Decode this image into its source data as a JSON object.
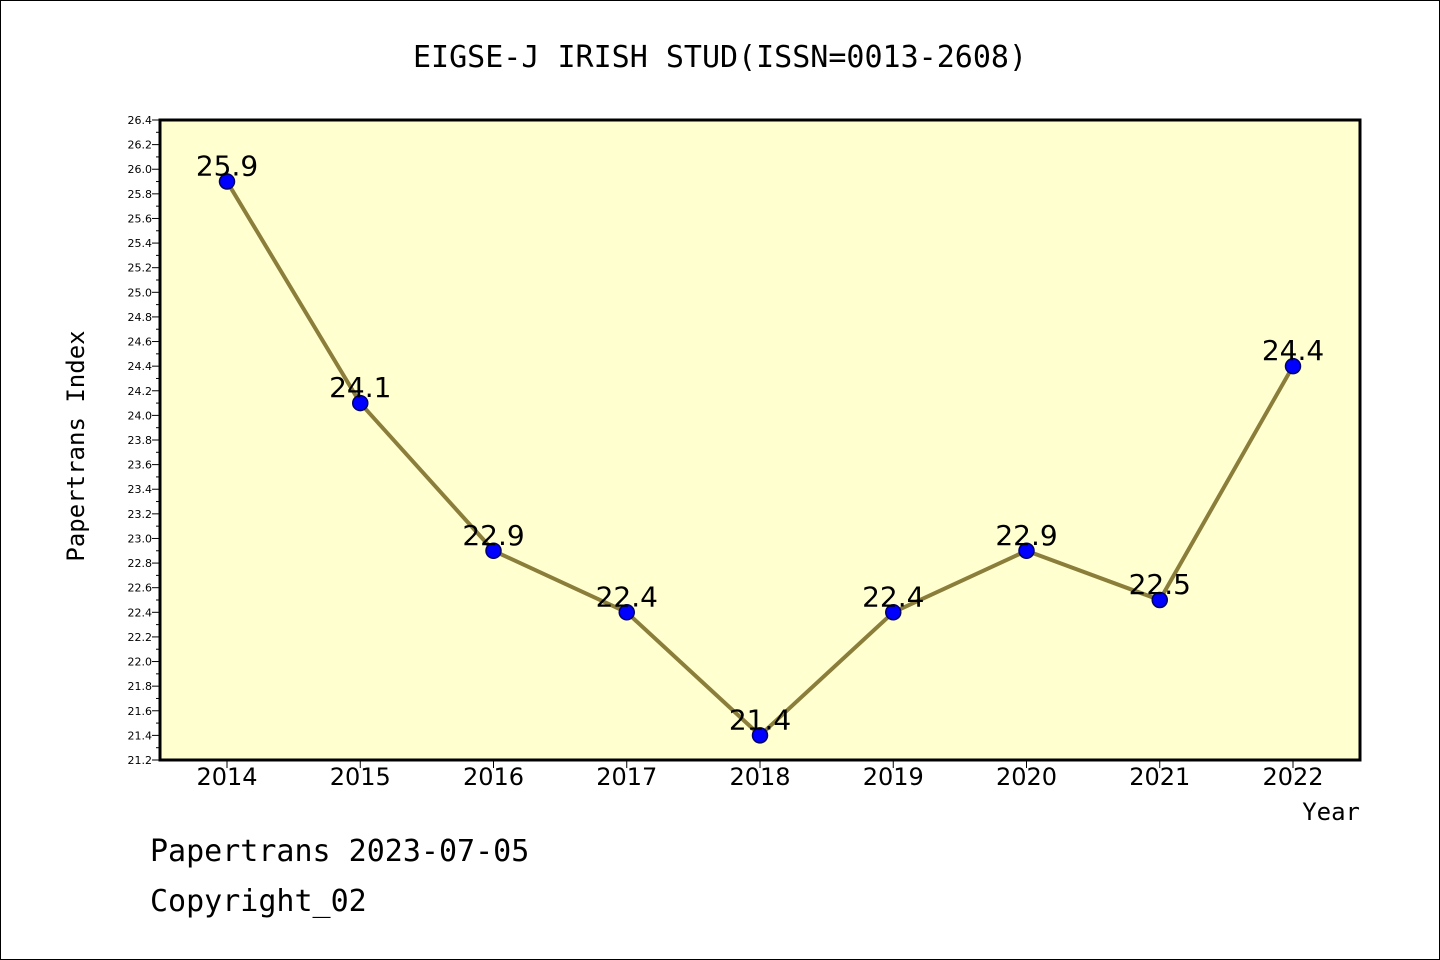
{
  "chart_data": {
    "type": "line",
    "title": "EIGSE-J IRISH STUD(ISSN=0013-2608)",
    "xlabel": "Year",
    "ylabel": "Papertrans Index",
    "categories": [
      "2014",
      "2015",
      "2016",
      "2017",
      "2018",
      "2019",
      "2020",
      "2021",
      "2022"
    ],
    "values": [
      25.9,
      24.1,
      22.9,
      22.4,
      21.4,
      22.4,
      22.9,
      22.5,
      24.4
    ],
    "data_labels": [
      "25.9",
      "24.1",
      "22.9",
      "22.4",
      "21.4",
      "22.4",
      "22.9",
      "22.5",
      "24.4"
    ],
    "ylim": [
      21.2,
      26.4
    ],
    "yticks": [
      "21.2",
      "21.4",
      "21.6",
      "21.8",
      "22.0",
      "22.2",
      "22.4",
      "22.6",
      "22.8",
      "23.0",
      "23.2",
      "23.4",
      "23.6",
      "23.8",
      "24.0",
      "24.2",
      "24.4",
      "24.6",
      "24.8",
      "25.0",
      "25.2",
      "25.4",
      "25.6",
      "25.8",
      "26.0",
      "26.2",
      "26.4"
    ],
    "grid": false,
    "colors": {
      "plot_background": "#ffffd0",
      "line": "#8b7d3a",
      "marker": "#0000ff",
      "marker_edge": "#000066"
    }
  },
  "footer": {
    "date_line": "Papertrans 2023-07-05",
    "copyright": "Copyright_02"
  }
}
